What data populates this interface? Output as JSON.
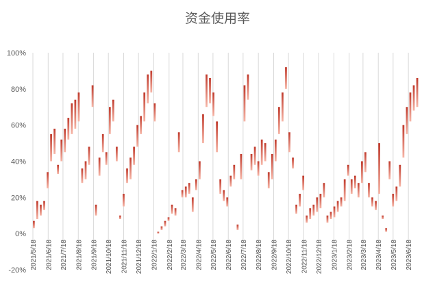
{
  "chart_data": {
    "type": "bar",
    "title": "资金使用率",
    "xlabel": "",
    "ylabel": "",
    "ylim": [
      -0.2,
      1.0
    ],
    "y_ticks": [
      {
        "value": 1.0,
        "label": "100%"
      },
      {
        "value": 0.8,
        "label": "80%"
      },
      {
        "value": 0.6,
        "label": "60%"
      },
      {
        "value": 0.4,
        "label": "40%"
      },
      {
        "value": 0.2,
        "label": "20%"
      },
      {
        "value": 0.0,
        "label": "0%"
      },
      {
        "value": -0.2,
        "label": "-20%"
      }
    ],
    "x_ticks": [
      "2021/5/18",
      "2021/6/18",
      "2021/7/18",
      "2021/8/18",
      "2021/9/18",
      "2021/10/18",
      "2021/11/18",
      "2021/12/18",
      "2022/1/18",
      "2022/2/18",
      "2022/3/18",
      "2022/4/18",
      "2022/5/18",
      "2022/6/18",
      "2022/7/18",
      "2022/8/18",
      "2022/9/18",
      "2022/10/18",
      "2022/11/18",
      "2022/12/18",
      "2023/1/18",
      "2023/2/18",
      "2023/3/18",
      "2023/4/18",
      "2023/5/18",
      "2023/6/18"
    ],
    "x_range": [
      "2021/5/18",
      "2023/7/10"
    ],
    "grid": "vertical",
    "colors": {
      "bar_top": "#c0392b",
      "bar_bottom": "#f7b7a8",
      "grid": "#d9d9d9",
      "text": "#595959"
    },
    "series": [
      {
        "x_start": "2021/5/18",
        "interval_days": 7,
        "values": [
          [
            0.03,
            0.07
          ],
          [
            0.08,
            0.18
          ],
          [
            0.1,
            0.16
          ],
          [
            0.13,
            0.18
          ],
          [
            0.25,
            0.34
          ],
          [
            0.4,
            0.55
          ],
          [
            0.44,
            0.58
          ],
          [
            0.33,
            0.38
          ],
          [
            0.4,
            0.52
          ],
          [
            0.45,
            0.58
          ],
          [
            0.52,
            0.64
          ],
          [
            0.55,
            0.72
          ],
          [
            0.58,
            0.74
          ],
          [
            0.62,
            0.78
          ],
          [
            0.28,
            0.36
          ],
          [
            0.3,
            0.4
          ],
          [
            0.38,
            0.48
          ],
          [
            0.7,
            0.82
          ],
          [
            0.1,
            0.16
          ],
          [
            0.32,
            0.42
          ],
          [
            0.45,
            0.55
          ],
          [
            0.38,
            0.45
          ],
          [
            0.55,
            0.7
          ],
          [
            0.62,
            0.74
          ],
          [
            0.4,
            0.48
          ],
          [
            0.08,
            0.1
          ],
          [
            0.15,
            0.22
          ],
          [
            0.28,
            0.36
          ],
          [
            0.3,
            0.42
          ],
          [
            0.38,
            0.48
          ],
          [
            0.48,
            0.6
          ],
          [
            0.55,
            0.65
          ],
          [
            0.62,
            0.78
          ],
          [
            0.72,
            0.88
          ],
          [
            0.78,
            0.9
          ],
          [
            0.62,
            0.72
          ],
          [
            0.0,
            0.01
          ],
          [
            0.02,
            0.04
          ],
          [
            0.04,
            0.07
          ],
          [
            0.07,
            0.09
          ],
          [
            0.11,
            0.16
          ],
          [
            0.1,
            0.14
          ],
          [
            0.45,
            0.56
          ],
          [
            0.2,
            0.24
          ],
          [
            0.2,
            0.26
          ],
          [
            0.22,
            0.28
          ],
          [
            0.12,
            0.2
          ],
          [
            0.24,
            0.3
          ],
          [
            0.3,
            0.4
          ],
          [
            0.5,
            0.66
          ],
          [
            0.7,
            0.88
          ],
          [
            0.72,
            0.86
          ],
          [
            0.65,
            0.78
          ],
          [
            0.45,
            0.62
          ],
          [
            0.22,
            0.3
          ],
          [
            0.18,
            0.24
          ],
          [
            0.15,
            0.2
          ],
          [
            0.26,
            0.32
          ],
          [
            0.3,
            0.38
          ],
          [
            0.02,
            0.05
          ],
          [
            0.3,
            0.44
          ],
          [
            0.62,
            0.82
          ],
          [
            0.74,
            0.88
          ],
          [
            0.35,
            0.44
          ],
          [
            0.38,
            0.48
          ],
          [
            0.32,
            0.4
          ],
          [
            0.38,
            0.52
          ],
          [
            0.4,
            0.5
          ],
          [
            0.25,
            0.34
          ],
          [
            0.3,
            0.44
          ],
          [
            0.4,
            0.52
          ],
          [
            0.55,
            0.7
          ],
          [
            0.62,
            0.78
          ],
          [
            0.8,
            0.92
          ],
          [
            0.45,
            0.56
          ],
          [
            0.36,
            0.42
          ],
          [
            0.11,
            0.16
          ],
          [
            0.15,
            0.22
          ],
          [
            0.24,
            0.32
          ],
          [
            0.06,
            0.1
          ],
          [
            0.08,
            0.14
          ],
          [
            0.1,
            0.16
          ],
          [
            0.12,
            0.2
          ],
          [
            0.14,
            0.22
          ],
          [
            0.2,
            0.28
          ],
          [
            0.06,
            0.1
          ],
          [
            0.08,
            0.12
          ],
          [
            0.09,
            0.15
          ],
          [
            0.12,
            0.18
          ],
          [
            0.15,
            0.2
          ],
          [
            0.18,
            0.3
          ],
          [
            0.32,
            0.38
          ],
          [
            0.22,
            0.3
          ],
          [
            0.25,
            0.32
          ],
          [
            0.2,
            0.28
          ],
          [
            0.28,
            0.4
          ],
          [
            0.34,
            0.45
          ],
          [
            0.2,
            0.28
          ],
          [
            0.15,
            0.2
          ],
          [
            0.13,
            0.18
          ],
          [
            0.22,
            0.5
          ],
          [
            0.08,
            0.1
          ],
          [
            0.01,
            0.03
          ],
          [
            0.3,
            0.4
          ],
          [
            0.15,
            0.22
          ],
          [
            0.18,
            0.26
          ],
          [
            0.26,
            0.38
          ],
          [
            0.42,
            0.6
          ],
          [
            0.55,
            0.7
          ],
          [
            0.62,
            0.78
          ],
          [
            0.68,
            0.82
          ],
          [
            0.7,
            0.86
          ],
          [
            0.62,
            0.78
          ],
          [
            0.72,
            0.84
          ],
          [
            0.66,
            0.82
          ],
          [
            0.7,
            0.86
          ],
          [
            0.68,
            0.86
          ],
          [
            0.72,
            0.84
          ],
          [
            0.66,
            0.8
          ],
          [
            0.4,
            0.58
          ],
          [
            0.38,
            0.5
          ],
          [
            0.48,
            0.64
          ],
          [
            0.52,
            0.66
          ],
          [
            0.6,
            0.82
          ],
          [
            0.55,
            0.72
          ],
          [
            0.6,
            0.7
          ]
        ]
      }
    ]
  }
}
